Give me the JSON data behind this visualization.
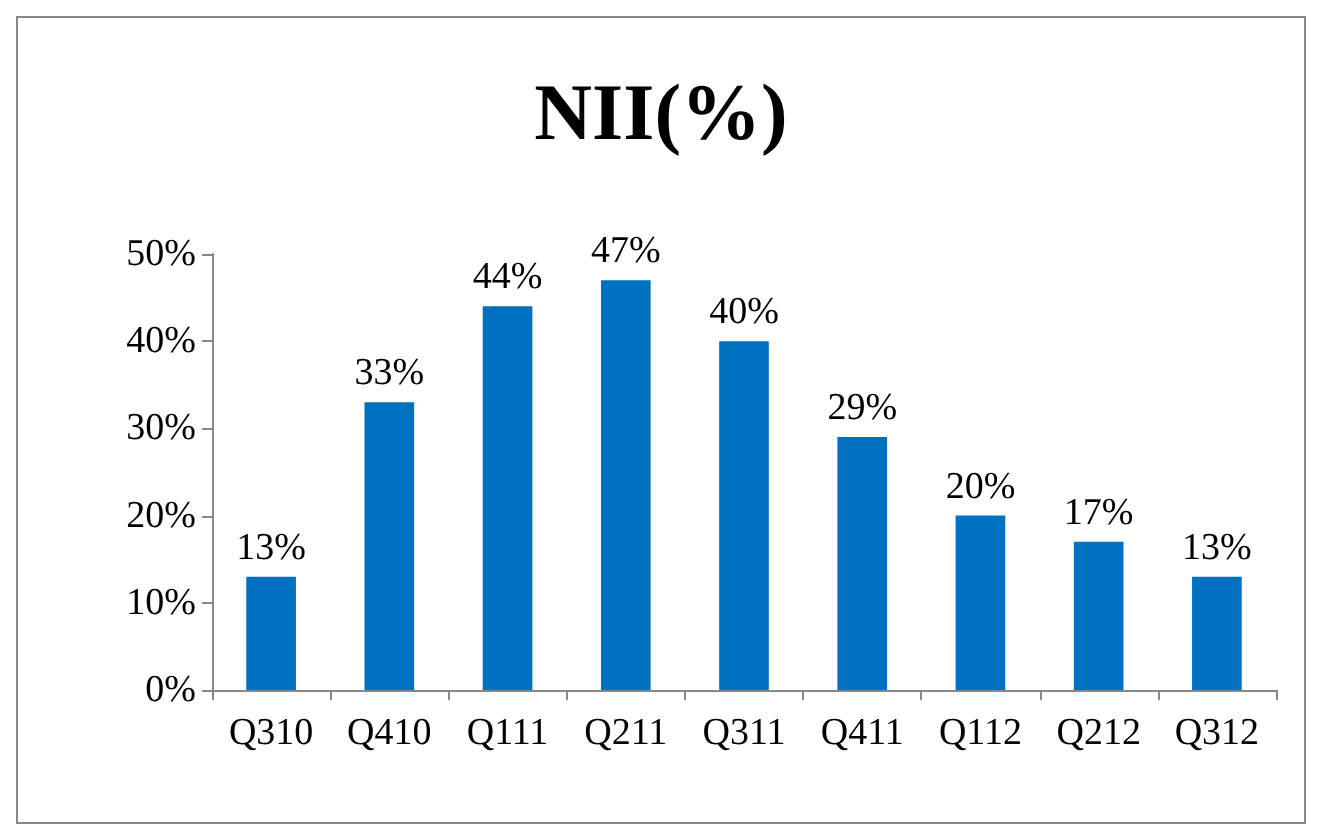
{
  "chart_data": {
    "type": "bar",
    "title": "NII(%)",
    "categories": [
      "Q310",
      "Q410",
      "Q111",
      "Q211",
      "Q311",
      "Q411",
      "Q112",
      "Q212",
      "Q312"
    ],
    "values": [
      13,
      33,
      44,
      47,
      40,
      29,
      20,
      17,
      13
    ],
    "color": "#0070c0",
    "ylim": [
      0,
      50
    ],
    "yticks": [
      {
        "value": 0,
        "label": "0%"
      },
      {
        "value": 10,
        "label": "10%"
      },
      {
        "value": 20,
        "label": "20%"
      },
      {
        "value": 30,
        "label": "30%"
      },
      {
        "value": 40,
        "label": "40%"
      },
      {
        "value": 50,
        "label": "50%"
      }
    ],
    "value_labels": [
      "13%",
      "33%",
      "44%",
      "47%",
      "40%",
      "29%",
      "20%",
      "17%",
      "13%"
    ],
    "grid": false
  }
}
